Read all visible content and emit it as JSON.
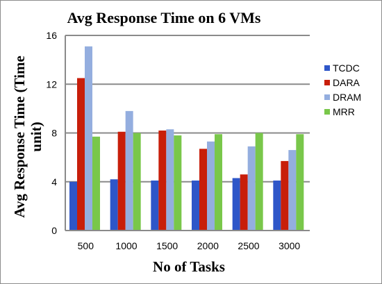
{
  "chart_data": {
    "type": "bar",
    "title": "Avg Response Time on 6 VMs",
    "xlabel": "No of Tasks",
    "ylabel_line1": "Avg Response Time (Time",
    "ylabel_line2": "unit)",
    "categories": [
      "500",
      "1000",
      "1500",
      "2000",
      "2500",
      "3000"
    ],
    "ylim": [
      0,
      16
    ],
    "yticks": [
      0,
      4,
      8,
      12,
      16
    ],
    "grid": true,
    "legend_position": "right",
    "series": [
      {
        "name": "TCDC",
        "color": "#2e56c8",
        "values": [
          4.0,
          4.2,
          4.1,
          4.1,
          4.3,
          4.1
        ]
      },
      {
        "name": "DARA",
        "color": "#c81e0a",
        "values": [
          12.5,
          8.1,
          8.2,
          6.7,
          4.6,
          5.7
        ]
      },
      {
        "name": "DRAM",
        "color": "#94aedf",
        "values": [
          15.1,
          9.8,
          8.3,
          7.3,
          6.9,
          6.6
        ]
      },
      {
        "name": "MRR",
        "color": "#79c74a",
        "values": [
          7.7,
          8.0,
          7.8,
          7.9,
          8.0,
          7.9
        ]
      }
    ]
  }
}
